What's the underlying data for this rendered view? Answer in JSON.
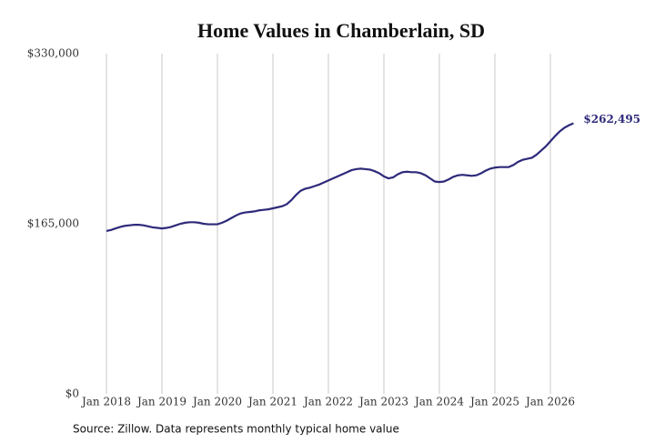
{
  "chart_data": {
    "type": "line",
    "title": "Home Values in Chamberlain, SD",
    "source": "Source: Zillow. Data represents monthly typical home value",
    "x": [
      "2018-01",
      "2018-02",
      "2018-03",
      "2018-04",
      "2018-05",
      "2018-06",
      "2018-07",
      "2018-08",
      "2018-09",
      "2018-10",
      "2018-11",
      "2018-12",
      "2019-01",
      "2019-02",
      "2019-03",
      "2019-04",
      "2019-05",
      "2019-06",
      "2019-07",
      "2019-08",
      "2019-09",
      "2019-10",
      "2019-11",
      "2019-12",
      "2020-01",
      "2020-02",
      "2020-03",
      "2020-04",
      "2020-05",
      "2020-06",
      "2020-07",
      "2020-08",
      "2020-09",
      "2020-10",
      "2020-11",
      "2020-12",
      "2021-01",
      "2021-02",
      "2021-03",
      "2021-04",
      "2021-05",
      "2021-06",
      "2021-07",
      "2021-08",
      "2021-09",
      "2021-10",
      "2021-11",
      "2021-12",
      "2022-01",
      "2022-02",
      "2022-03",
      "2022-04",
      "2022-05",
      "2022-06",
      "2022-07",
      "2022-08",
      "2022-09",
      "2022-10",
      "2022-11",
      "2022-12",
      "2023-01",
      "2023-02",
      "2023-03",
      "2023-04",
      "2023-05",
      "2023-06",
      "2023-07",
      "2023-08",
      "2023-09",
      "2023-10",
      "2023-11",
      "2023-12",
      "2024-01",
      "2024-02",
      "2024-03",
      "2024-04",
      "2024-05",
      "2024-06",
      "2024-07",
      "2024-08",
      "2024-09",
      "2024-10",
      "2024-11",
      "2024-12",
      "2025-01",
      "2025-02",
      "2025-03",
      "2025-04",
      "2025-05",
      "2025-06",
      "2025-07",
      "2025-08",
      "2025-09",
      "2025-10",
      "2025-11",
      "2025-12",
      "2026-01",
      "2026-02",
      "2026-03",
      "2026-04",
      "2026-05",
      "2026-06"
    ],
    "series": [
      {
        "name": "Typical home value",
        "color": "#2e2a7a",
        "values": [
          158000,
          159000,
          160500,
          162000,
          163000,
          163500,
          164000,
          164000,
          163500,
          162500,
          161500,
          161000,
          160500,
          161000,
          162000,
          163500,
          165000,
          166000,
          166500,
          166500,
          166000,
          165000,
          164500,
          164500,
          164500,
          166000,
          168000,
          170500,
          173000,
          175000,
          176000,
          176500,
          177000,
          178000,
          178500,
          179000,
          180000,
          181000,
          182000,
          184000,
          188000,
          193000,
          197000,
          199000,
          200000,
          201500,
          203000,
          205000,
          207000,
          209000,
          211000,
          213000,
          215000,
          217000,
          218000,
          218500,
          218000,
          217500,
          216000,
          214000,
          211000,
          209000,
          210000,
          213000,
          215000,
          215500,
          215000,
          215000,
          214000,
          212000,
          209000,
          206000,
          205500,
          206000,
          208000,
          210500,
          212000,
          212500,
          212000,
          211500,
          212000,
          214000,
          216500,
          218500,
          219500,
          220000,
          220000,
          220000,
          222000,
          225000,
          227000,
          228000,
          229000,
          232000,
          236000,
          240000,
          245000,
          250000,
          254500,
          258000,
          260500,
          262495
        ],
        "value_labels": [
          null,
          null,
          null,
          null,
          null,
          null,
          null,
          null,
          null,
          null,
          null,
          null,
          null,
          null,
          null,
          null,
          null,
          null,
          null,
          null,
          null,
          null,
          null,
          null,
          null,
          null,
          null,
          null,
          null,
          null,
          null,
          null,
          null,
          null,
          null,
          null,
          null,
          null,
          null,
          null,
          null,
          null,
          null,
          null,
          null,
          null,
          null,
          null,
          null,
          null,
          null,
          null,
          null,
          null,
          null,
          null,
          null,
          null,
          null,
          null,
          null,
          null,
          null,
          null,
          null,
          null,
          null,
          null,
          null,
          null,
          null,
          null,
          null,
          null,
          null,
          null,
          null,
          null,
          null,
          null,
          null,
          null,
          null,
          null,
          null,
          null,
          null,
          null,
          null,
          null,
          null,
          null,
          null,
          null,
          null,
          null,
          null,
          null,
          null,
          null,
          null,
          "$262,495"
        ]
      }
    ],
    "xticks": [
      {
        "value": "2018-01",
        "label": "Jan 2018"
      },
      {
        "value": "2019-01",
        "label": "Jan 2019"
      },
      {
        "value": "2020-01",
        "label": "Jan 2020"
      },
      {
        "value": "2021-01",
        "label": "Jan 2021"
      },
      {
        "value": "2022-01",
        "label": "Jan 2022"
      },
      {
        "value": "2023-01",
        "label": "Jan 2023"
      },
      {
        "value": "2024-01",
        "label": "Jan 2024"
      },
      {
        "value": "2025-01",
        "label": "Jan 2025"
      },
      {
        "value": "2026-01",
        "label": "Jan 2026"
      }
    ],
    "ylim": [
      0,
      330000
    ],
    "yticks": [
      {
        "value": 0,
        "label": "$0"
      },
      {
        "value": 165000,
        "label": "$165,000"
      },
      {
        "value": 330000,
        "label": "$330,000"
      }
    ],
    "grid": "x"
  }
}
